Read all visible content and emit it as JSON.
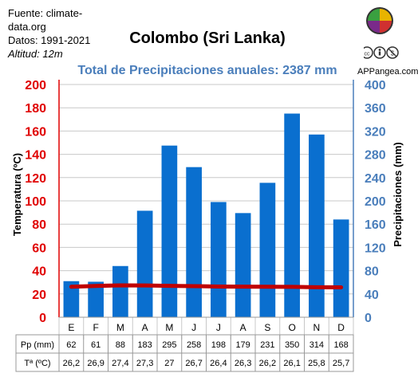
{
  "source": {
    "line1": "Fuente: climate-",
    "line2": "data.org",
    "line3": "Datos: 1991-2021",
    "altitude": "Altitud: 12m"
  },
  "logo": {
    "site": "APPangea.com",
    "icon": "puzzle-globe-icon",
    "license_icons": [
      "cc-icon",
      "by-icon",
      "nc-icon"
    ]
  },
  "chart_data": {
    "type": "bar",
    "title": "Colombo (Sri Lanka)",
    "subtitle": "Total de Precipitaciones anuales: 2387 mm",
    "categories": [
      "E",
      "F",
      "M",
      "A",
      "M",
      "J",
      "J",
      "A",
      "S",
      "O",
      "N",
      "D"
    ],
    "ylabel_left": "Temperatura (ºC)",
    "ylabel_right": "Precipitaciones (mm)",
    "ylim_left": [
      0,
      200
    ],
    "ylim_right": [
      0,
      400
    ],
    "yticks_left": [
      "0",
      "20",
      "40",
      "60",
      "80",
      "100",
      "120",
      "140",
      "160",
      "180",
      "200"
    ],
    "yticks_right": [
      "0",
      "40",
      "80",
      "120",
      "160",
      "200",
      "240",
      "280",
      "320",
      "360",
      "400"
    ],
    "grid": true,
    "series": [
      {
        "name": "Pp (mm)",
        "type": "bar",
        "axis": "right",
        "color": "#0a6fcf",
        "values": [
          62,
          61,
          88,
          183,
          295,
          258,
          198,
          179,
          231,
          350,
          314,
          168
        ]
      },
      {
        "name": "Tª (ºC)",
        "type": "line",
        "axis": "left",
        "color": "#c00000",
        "values": [
          26.2,
          26.9,
          27.4,
          27.3,
          27,
          26.7,
          26.4,
          26.3,
          26.2,
          26.1,
          25.8,
          25.7
        ]
      }
    ],
    "table": {
      "rows": [
        {
          "label": "Pp (mm)",
          "cells": [
            "62",
            "61",
            "88",
            "183",
            "295",
            "258",
            "198",
            "179",
            "231",
            "350",
            "314",
            "168"
          ]
        },
        {
          "label": "Tª (ºC)",
          "cells": [
            "26,2",
            "26,9",
            "27,4",
            "27,3",
            "27",
            "26,7",
            "26,4",
            "26,3",
            "26,2",
            "26,1",
            "25,8",
            "25,7"
          ]
        }
      ]
    }
  }
}
